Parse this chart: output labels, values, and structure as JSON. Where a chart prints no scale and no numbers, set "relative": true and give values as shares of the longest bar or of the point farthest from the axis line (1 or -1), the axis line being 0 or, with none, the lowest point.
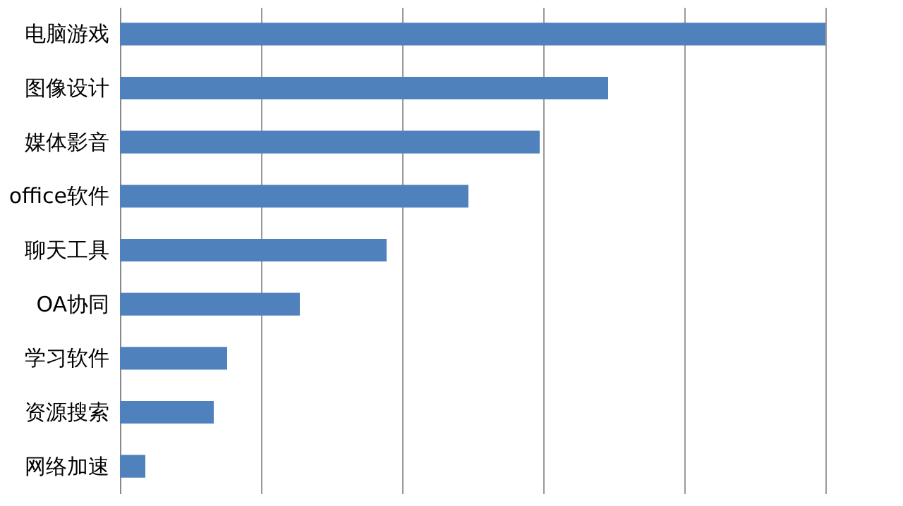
{
  "chart_data": {
    "type": "bar",
    "orientation": "horizontal",
    "relative": true,
    "grid": true,
    "color": "#4f81bd",
    "categories": [
      "电脑游戏",
      "图像设计",
      "媒体影音",
      "office软件",
      "聊天工具",
      "OA协同",
      "学习软件",
      "资源搜索",
      "网络加速"
    ],
    "values": [
      1,
      0.692,
      0.595,
      0.494,
      0.378,
      0.255,
      0.152,
      0.133,
      0.036
    ]
  }
}
